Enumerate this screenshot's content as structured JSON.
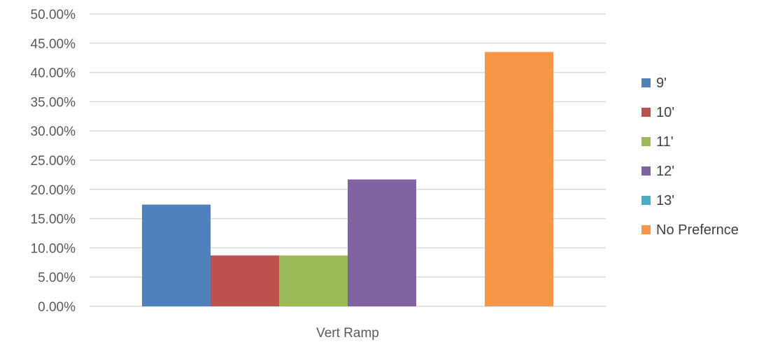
{
  "chart_data": {
    "type": "bar",
    "title": "",
    "xlabel": "",
    "ylabel": "",
    "categories": [
      "Vert Ramp"
    ],
    "series": [
      {
        "name": "9'",
        "values": [
          0.174
        ],
        "color": "#4F81BD"
      },
      {
        "name": "10'",
        "values": [
          0.087
        ],
        "color": "#C0504D"
      },
      {
        "name": "11'",
        "values": [
          0.087
        ],
        "color": "#9BBB59"
      },
      {
        "name": "12'",
        "values": [
          0.217
        ],
        "color": "#8064A2"
      },
      {
        "name": "13'",
        "values": [
          0.0
        ],
        "color": "#4BACC6"
      },
      {
        "name": "No Prefernce",
        "values": [
          0.435
        ],
        "color": "#F79646"
      }
    ],
    "ylim": [
      0,
      0.5
    ],
    "yticks": [
      0,
      0.05,
      0.1,
      0.15,
      0.2,
      0.25,
      0.3,
      0.35,
      0.4,
      0.45,
      0.5
    ],
    "ytick_labels": [
      "0.00%",
      "5.00%",
      "10.00%",
      "15.00%",
      "20.00%",
      "25.00%",
      "30.00%",
      "35.00%",
      "40.00%",
      "45.00%",
      "50.00%"
    ],
    "grid": true,
    "legend_position": "right"
  }
}
